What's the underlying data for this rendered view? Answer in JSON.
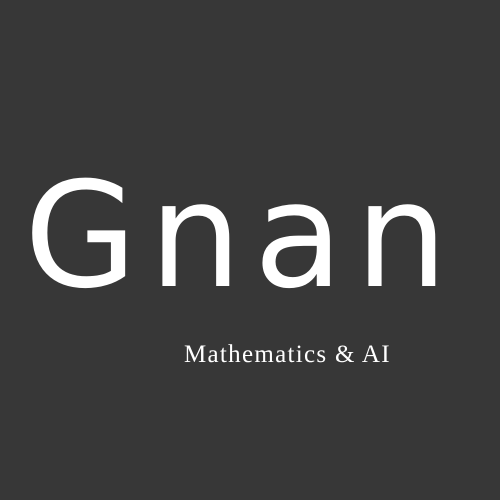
{
  "branding": {
    "title": "Gnan",
    "subtitle": "Mathematics & AI"
  },
  "colors": {
    "background": "#373737",
    "text": "#ffffff"
  }
}
